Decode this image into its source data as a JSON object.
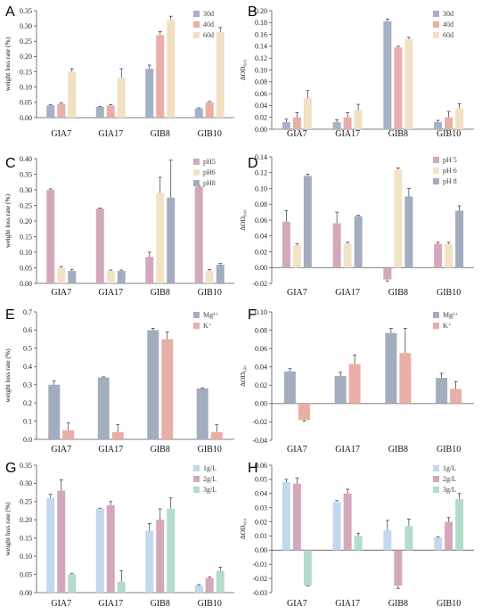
{
  "chart_data": [
    {
      "panel": "A",
      "type": "bar",
      "ylabel": "weight loss rate (%)",
      "categories": [
        "GIA7",
        "GIA17",
        "GIB8",
        "GIB10"
      ],
      "yticks": [
        "0.00",
        "0.05",
        "0.10",
        "0.15",
        "0.20",
        "0.25",
        "0.30",
        "0.35"
      ],
      "ylim": [
        0,
        0.35
      ],
      "legend_position": "top-right",
      "series": [
        {
          "name": "30d",
          "color": "#a5b1c6",
          "values": [
            0.04,
            0.035,
            0.16,
            0.03
          ],
          "errors": [
            0.003,
            0.002,
            0.012,
            0.002
          ]
        },
        {
          "name": "40d",
          "color": "#e8aea7",
          "values": [
            0.045,
            0.04,
            0.27,
            0.05
          ],
          "errors": [
            0.004,
            0.003,
            0.012,
            0.003
          ]
        },
        {
          "name": "60d",
          "color": "#f1e0c3",
          "values": [
            0.15,
            0.13,
            0.32,
            0.28
          ],
          "errors": [
            0.01,
            0.03,
            0.012,
            0.015
          ]
        }
      ]
    },
    {
      "panel": "B",
      "type": "bar",
      "ylabel": "ΔOD₆₀₀",
      "categories": [
        "GIA7",
        "GIA17",
        "GIB8",
        "GIB10"
      ],
      "yticks": [
        "0.00",
        "0.02",
        "0.04",
        "0.06",
        "0.08",
        "0.10",
        "0.12",
        "0.14",
        "0.16",
        "0.18",
        "0.20"
      ],
      "ylim": [
        0,
        0.2
      ],
      "legend_position": "top-right",
      "series": [
        {
          "name": "30d",
          "color": "#a5b1c6",
          "values": [
            0.012,
            0.012,
            0.182,
            0.012
          ],
          "errors": [
            0.005,
            0.004,
            0.004,
            0.003
          ]
        },
        {
          "name": "40d",
          "color": "#e8aea7",
          "values": [
            0.02,
            0.02,
            0.138,
            0.02
          ],
          "errors": [
            0.008,
            0.008,
            0.002,
            0.01
          ]
        },
        {
          "name": "60d",
          "color": "#f1e0c3",
          "values": [
            0.052,
            0.032,
            0.152,
            0.035
          ],
          "errors": [
            0.013,
            0.01,
            0.003,
            0.008
          ]
        }
      ]
    },
    {
      "panel": "C",
      "type": "bar",
      "ylabel": "weight loss rate (%)",
      "categories": [
        "GIA7",
        "GIA17",
        "GIB8",
        "GIB10"
      ],
      "yticks": [
        "0.00",
        "0.05",
        "0.10",
        "0.15",
        "0.20",
        "0.25",
        "0.30",
        "0.35",
        "0.40"
      ],
      "ylim": [
        0,
        0.4
      ],
      "legend_position": "top-right",
      "series": [
        {
          "name": "pH5",
          "color": "#d3a8bb",
          "values": [
            0.3,
            0.24,
            0.085,
            0.31
          ],
          "errors": [
            0.003,
            0.002,
            0.015,
            0.002
          ]
        },
        {
          "name": "pH6",
          "color": "#f1e3c6",
          "values": [
            0.05,
            0.04,
            0.29,
            0.04
          ],
          "errors": [
            0.004,
            0.003,
            0.05,
            0.004
          ]
        },
        {
          "name": "pH8",
          "color": "#a3adc0",
          "values": [
            0.04,
            0.04,
            0.275,
            0.06
          ],
          "errors": [
            0.005,
            0.003,
            0.12,
            0.004
          ]
        }
      ]
    },
    {
      "panel": "D",
      "type": "bar",
      "ylabel": "ΔOD₆₀₀",
      "categories": [
        "GIA7",
        "GIA17",
        "GIB8",
        "GIB10"
      ],
      "yticks": [
        "-0.02",
        "0.00",
        "0.02",
        "0.04",
        "0.06",
        "0.08",
        "0.10",
        "0.12",
        "0.14"
      ],
      "ylim": [
        -0.02,
        0.14
      ],
      "legend_position": "top-right",
      "series": [
        {
          "name": "pH 5",
          "color": "#d3a8bb",
          "values": [
            0.058,
            0.056,
            -0.015,
            0.03
          ],
          "errors": [
            0.014,
            0.014,
            0.002,
            0.002
          ]
        },
        {
          "name": "pH 6",
          "color": "#f1e3c6",
          "values": [
            0.028,
            0.03,
            0.124,
            0.03
          ],
          "errors": [
            0.002,
            0.002,
            0.002,
            0.002
          ]
        },
        {
          "name": "pH 8",
          "color": "#a3adc0",
          "values": [
            0.116,
            0.065,
            0.09,
            0.072
          ],
          "errors": [
            0.002,
            0.001,
            0.01,
            0.006
          ]
        }
      ]
    },
    {
      "panel": "E",
      "type": "bar",
      "ylabel": "weight loss rate (%)",
      "categories": [
        "GIA7",
        "GIA17",
        "GIB8",
        "GIB10"
      ],
      "yticks": [
        "0.0",
        "0.1",
        "0.2",
        "0.3",
        "0.4",
        "0.5",
        "0.6",
        "0.7"
      ],
      "ylim": [
        0,
        0.7
      ],
      "legend_position": "top-right",
      "series": [
        {
          "name": "Mg²⁺",
          "color": "#a3adc0",
          "values": [
            0.3,
            0.34,
            0.6,
            0.28
          ],
          "errors": [
            0.02,
            0.003,
            0.01,
            0.003
          ]
        },
        {
          "name": "K⁺",
          "color": "#e8aea7",
          "values": [
            0.05,
            0.04,
            0.55,
            0.04
          ],
          "errors": [
            0.04,
            0.04,
            0.04,
            0.04
          ]
        }
      ]
    },
    {
      "panel": "F",
      "type": "bar",
      "ylabel": "ΔOD₆₀₀",
      "categories": [
        "GIA7",
        "GIA17",
        "GIB8",
        "GIB10"
      ],
      "yticks": [
        "-0.04",
        "-0.02",
        "0.00",
        "0.02",
        "0.04",
        "0.06",
        "0.08",
        "0.10"
      ],
      "ylim": [
        -0.04,
        0.1
      ],
      "legend_position": "top-right",
      "series": [
        {
          "name": "Mg²⁺",
          "color": "#a3adc0",
          "values": [
            0.035,
            0.03,
            0.077,
            0.028
          ],
          "errors": [
            0.003,
            0.004,
            0.005,
            0.005
          ]
        },
        {
          "name": "K⁺",
          "color": "#e8aea7",
          "values": [
            -0.018,
            0.043,
            0.055,
            0.016
          ],
          "errors": [
            0.001,
            0.01,
            0.027,
            0.008
          ]
        }
      ]
    },
    {
      "panel": "G",
      "type": "bar",
      "ylabel": "weight loss rate (%)",
      "categories": [
        "GIA7",
        "GIA17",
        "GIB8",
        "GIB10"
      ],
      "yticks": [
        "0.00",
        "0.05",
        "0.10",
        "0.15",
        "0.20",
        "0.25",
        "0.30",
        "0.35"
      ],
      "ylim": [
        0,
        0.35
      ],
      "legend_position": "top-right",
      "series": [
        {
          "name": "1g/L",
          "color": "#c2d8ee",
          "values": [
            0.26,
            0.23,
            0.17,
            0.02
          ],
          "errors": [
            0.01,
            0.002,
            0.02,
            0.002
          ]
        },
        {
          "name": "2g/L",
          "color": "#d3a8bb",
          "values": [
            0.28,
            0.24,
            0.2,
            0.04
          ],
          "errors": [
            0.03,
            0.01,
            0.03,
            0.003
          ]
        },
        {
          "name": "3g/L",
          "color": "#b3dccb",
          "values": [
            0.05,
            0.03,
            0.23,
            0.06
          ],
          "errors": [
            0.002,
            0.03,
            0.03,
            0.01
          ]
        }
      ]
    },
    {
      "panel": "H",
      "type": "bar",
      "ylabel": "ΔOD₆₀₀",
      "categories": [
        "GIA7",
        "GIA17",
        "GIB8",
        "GIB10"
      ],
      "yticks": [
        "-0.03",
        "-0.02",
        "-0.01",
        "0.00",
        "0.01",
        "0.02",
        "0.03",
        "0.04",
        "0.05",
        "0.06"
      ],
      "ylim": [
        -0.03,
        0.06
      ],
      "legend_position": "top-right",
      "series": [
        {
          "name": "1g/L",
          "color": "#c2d8ee",
          "values": [
            0.048,
            0.034,
            0.014,
            0.009
          ],
          "errors": [
            0.002,
            0.001,
            0.007,
            0.0005
          ]
        },
        {
          "name": "2g/L",
          "color": "#d3a8bb",
          "values": [
            0.047,
            0.04,
            -0.025,
            0.02
          ],
          "errors": [
            0.004,
            0.003,
            0.002,
            0.003
          ]
        },
        {
          "name": "3g/L",
          "color": "#b3dccb",
          "values": [
            -0.025,
            0.01,
            0.017,
            0.036
          ],
          "errors": [
            0.0003,
            0.002,
            0.005,
            0.004
          ]
        }
      ]
    }
  ]
}
